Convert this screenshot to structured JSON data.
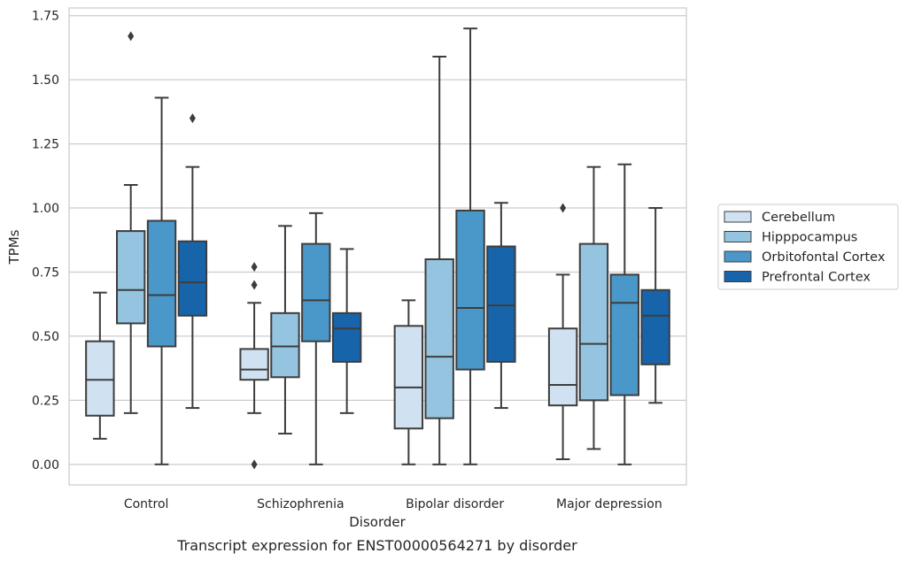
{
  "chart_data": {
    "type": "box",
    "title": "",
    "caption": "Transcript expression for ENST00000564271 by disorder",
    "xlabel": "Disorder",
    "ylabel": "TPMs",
    "ylim": [
      -0.08,
      1.78
    ],
    "yticks": [
      "0.00",
      "0.25",
      "0.50",
      "0.75",
      "1.00",
      "1.25",
      "1.50",
      "1.75"
    ],
    "ytick_values": [
      0,
      0.25,
      0.5,
      0.75,
      1.0,
      1.25,
      1.5,
      1.75
    ],
    "grid": true,
    "legend_position": "right",
    "categories": [
      "Control",
      "Schizophrenia",
      "Bipolar disorder",
      "Major depression"
    ],
    "series": [
      {
        "name": "Cerebellum",
        "color": "#d0e1f2",
        "boxes": [
          {
            "whisker_low": 0.1,
            "q1": 0.19,
            "median": 0.33,
            "q3": 0.48,
            "whisker_high": 0.67,
            "outliers": []
          },
          {
            "whisker_low": 0.2,
            "q1": 0.33,
            "median": 0.37,
            "q3": 0.45,
            "whisker_high": 0.63,
            "outliers": [
              0.77,
              0.7,
              0.0
            ]
          },
          {
            "whisker_low": 0.0,
            "q1": 0.14,
            "median": 0.3,
            "q3": 0.54,
            "whisker_high": 0.64,
            "outliers": []
          },
          {
            "whisker_low": 0.02,
            "q1": 0.23,
            "median": 0.31,
            "q3": 0.53,
            "whisker_high": 0.74,
            "outliers": [
              1.0
            ]
          }
        ]
      },
      {
        "name": "Hipppocampus",
        "color": "#94c4df",
        "boxes": [
          {
            "whisker_low": 0.2,
            "q1": 0.55,
            "median": 0.68,
            "q3": 0.91,
            "whisker_high": 1.09,
            "outliers": [
              1.67
            ]
          },
          {
            "whisker_low": 0.12,
            "q1": 0.34,
            "median": 0.46,
            "q3": 0.59,
            "whisker_high": 0.93,
            "outliers": []
          },
          {
            "whisker_low": 0.0,
            "q1": 0.18,
            "median": 0.42,
            "q3": 0.8,
            "whisker_high": 1.59,
            "outliers": []
          },
          {
            "whisker_low": 0.06,
            "q1": 0.25,
            "median": 0.47,
            "q3": 0.86,
            "whisker_high": 1.16,
            "outliers": []
          }
        ]
      },
      {
        "name": "Orbitofontal Cortex",
        "color": "#4a98c9",
        "boxes": [
          {
            "whisker_low": 0.0,
            "q1": 0.46,
            "median": 0.66,
            "q3": 0.95,
            "whisker_high": 1.43,
            "outliers": []
          },
          {
            "whisker_low": 0.0,
            "q1": 0.48,
            "median": 0.64,
            "q3": 0.86,
            "whisker_high": 0.98,
            "outliers": []
          },
          {
            "whisker_low": 0.0,
            "q1": 0.37,
            "median": 0.61,
            "q3": 0.99,
            "whisker_high": 1.7,
            "outliers": []
          },
          {
            "whisker_low": 0.0,
            "q1": 0.27,
            "median": 0.63,
            "q3": 0.74,
            "whisker_high": 1.17,
            "outliers": []
          }
        ]
      },
      {
        "name": "Prefrontal Cortex",
        "color": "#1764ab",
        "boxes": [
          {
            "whisker_low": 0.22,
            "q1": 0.58,
            "median": 0.71,
            "q3": 0.87,
            "whisker_high": 1.16,
            "outliers": [
              1.35
            ]
          },
          {
            "whisker_low": 0.2,
            "q1": 0.4,
            "median": 0.53,
            "q3": 0.59,
            "whisker_high": 0.84,
            "outliers": []
          },
          {
            "whisker_low": 0.22,
            "q1": 0.4,
            "median": 0.62,
            "q3": 0.85,
            "whisker_high": 1.02,
            "outliers": []
          },
          {
            "whisker_low": 0.24,
            "q1": 0.39,
            "median": 0.58,
            "q3": 0.68,
            "whisker_high": 1.0,
            "outliers": []
          }
        ]
      }
    ]
  }
}
